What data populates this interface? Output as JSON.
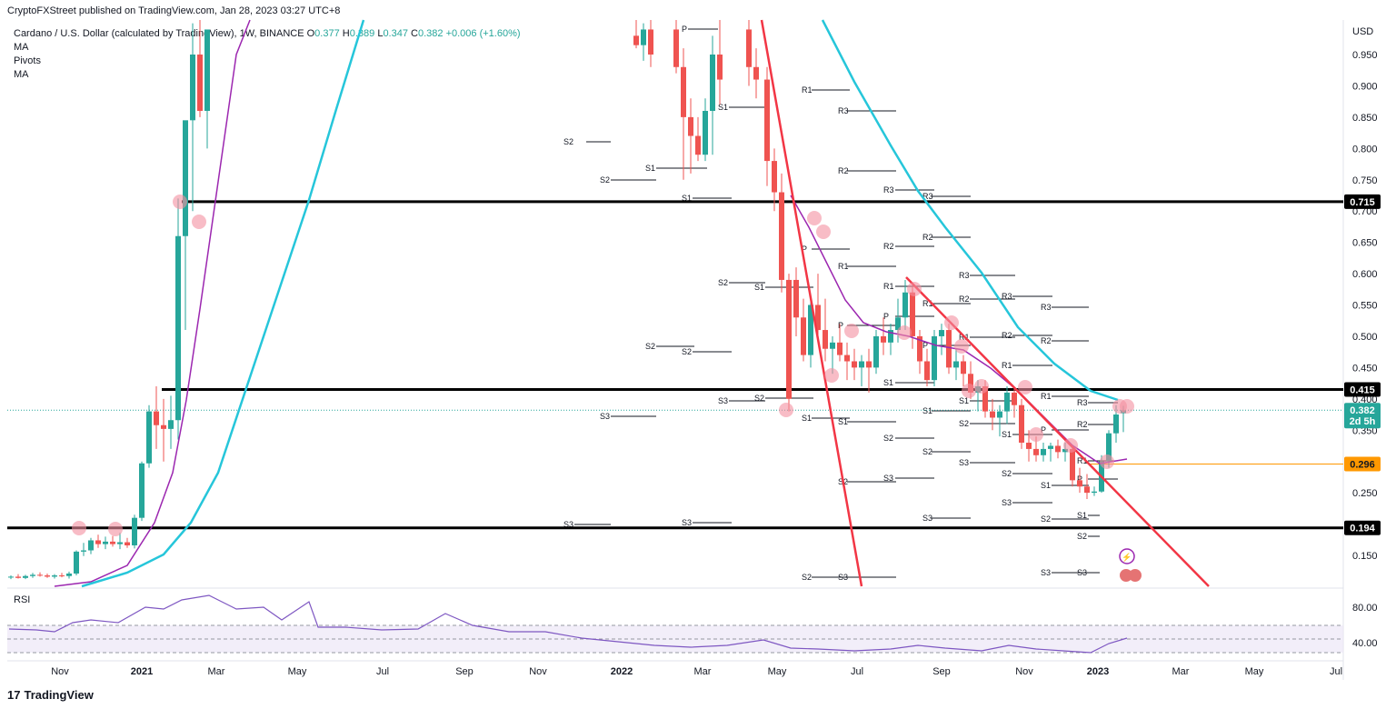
{
  "header": {
    "published": "CryptoFXStreet published on TradingView.com, Jan 28, 2023 03:27 UTC+8"
  },
  "legend": {
    "symbol": "Cardano / U.S. Dollar (calculated by TradingView), 1W, BINANCE",
    "o_label": "O",
    "o": "0.377",
    "h_label": "H",
    "h": "0.389",
    "l_label": "L",
    "l": "0.347",
    "c_label": "C",
    "c": "0.382",
    "change": "+0.006 (+1.60%)",
    "indicators": [
      "MA",
      "Pivots",
      "MA"
    ]
  },
  "chart_data": {
    "type": "candlestick",
    "currency_label": "USD",
    "y_ticks": [
      "0.950",
      "0.900",
      "0.850",
      "0.800",
      "0.750",
      "0.700",
      "0.650",
      "0.600",
      "0.550",
      "0.500",
      "0.450",
      "0.400",
      "0.350",
      "0.300",
      "0.250",
      "0.200",
      "0.150"
    ],
    "x_ticks": [
      {
        "label": "Nov",
        "bold": false
      },
      {
        "label": "2021",
        "bold": true
      },
      {
        "label": "Mar",
        "bold": false
      },
      {
        "label": "May",
        "bold": false
      },
      {
        "label": "Jul",
        "bold": false
      },
      {
        "label": "Sep",
        "bold": false
      },
      {
        "label": "Nov",
        "bold": false
      },
      {
        "label": "2022",
        "bold": true
      },
      {
        "label": "Mar",
        "bold": false
      },
      {
        "label": "May",
        "bold": false
      },
      {
        "label": "Jul",
        "bold": false
      },
      {
        "label": "Sep",
        "bold": false
      },
      {
        "label": "Nov",
        "bold": false
      },
      {
        "label": "2023",
        "bold": true
      },
      {
        "label": "Mar",
        "bold": false
      },
      {
        "label": "May",
        "bold": false
      },
      {
        "label": "Jul",
        "bold": false
      }
    ],
    "horizontal_levels": [
      {
        "value": 0.715,
        "label": "0.715",
        "color": "#000000"
      },
      {
        "value": 0.415,
        "label": "0.415",
        "color": "#000000"
      },
      {
        "value": 0.194,
        "label": "0.194",
        "color": "#000000"
      }
    ],
    "support_level": {
      "value": 0.296,
      "label": "0.296",
      "color": "#ff9800"
    },
    "last_price": {
      "value": 0.382,
      "label": "0.382",
      "countdown": "2d 5h",
      "color": "#26a69a"
    },
    "pivot_labels": [
      "P",
      "R1",
      "R2",
      "R3",
      "S1",
      "S2",
      "S3"
    ],
    "rsi": {
      "label": "RSI",
      "ticks": [
        "80.00",
        "40.00"
      ],
      "upper": 70,
      "lower": 30
    },
    "colors": {
      "up": "#26a69a",
      "down": "#ef5350",
      "ma_fast": "#9c27b0",
      "ma_slow": "#26c6da",
      "trend": "#f23645"
    }
  },
  "footer": {
    "brand": "TradingView"
  }
}
